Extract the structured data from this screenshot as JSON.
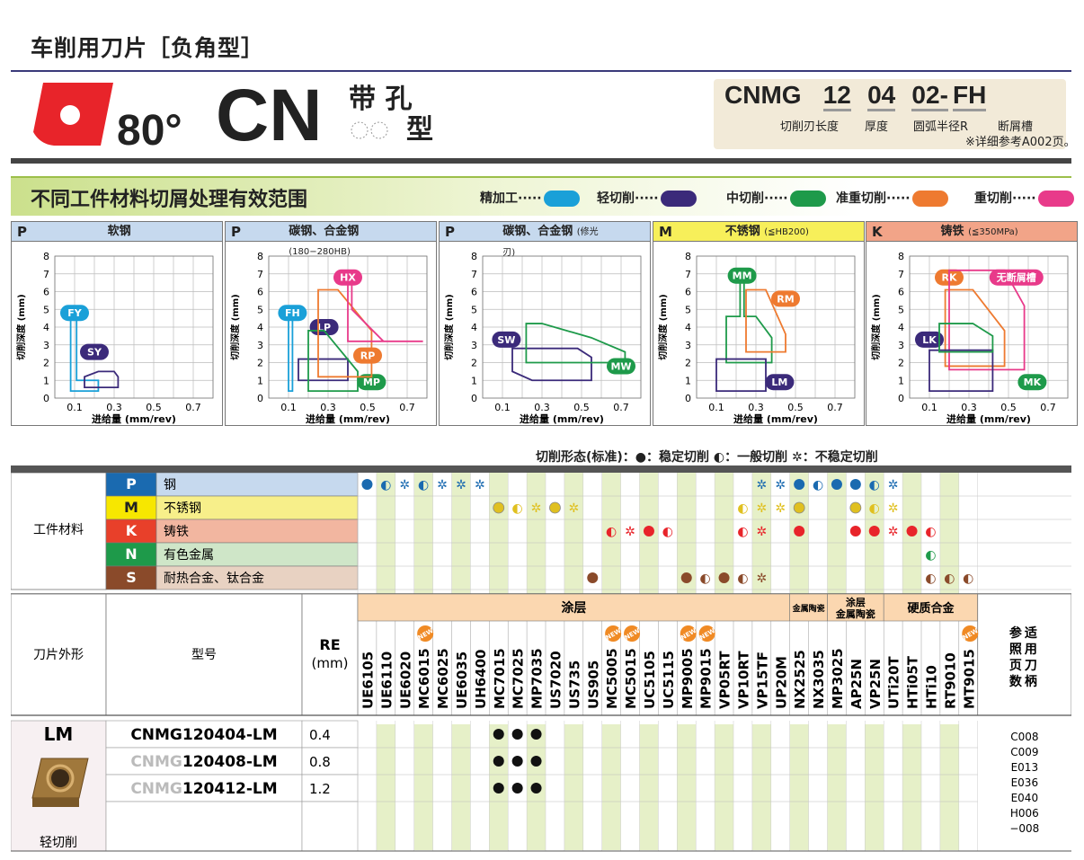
{
  "header": {
    "title": "车削用刀片［负角型］",
    "angle": "80°",
    "shape_code": "CN",
    "kanji_top": "带 孔",
    "kanji_bottom": "型",
    "code_parts": [
      "CNMG",
      "12",
      "04",
      "02-",
      "FH"
    ],
    "code_labels": [
      "切削刃长度",
      "厚度",
      "圆弧半径R",
      "断屑槽"
    ],
    "code_note": "※详细参考A002页。"
  },
  "section": {
    "title": "不同工件材料切屑处理有效范围",
    "legend": [
      {
        "label": "精加工·····",
        "color": "#1aa0d8"
      },
      {
        "label": "轻切削·····",
        "color": "#3b2a7a"
      },
      {
        "label": "中切削·····",
        "color": "#1e9a4a"
      },
      {
        "label": "准重切削·····",
        "color": "#ee7a30"
      },
      {
        "label": "重切削·····",
        "color": "#e83a8a"
      }
    ]
  },
  "charts": [
    {
      "letter": "P",
      "name": "软钢",
      "note": "",
      "head_color": "#c6d9ee",
      "ylabel": "切削深度 (mm)",
      "xlabel": "进给量 (mm/rev)"
    },
    {
      "letter": "P",
      "name": "碳钢、合金钢",
      "note": "(180−280HB)",
      "head_color": "#c6d9ee",
      "ylabel": "切削深度 (mm)",
      "xlabel": "进给量 (mm/rev)"
    },
    {
      "letter": "P",
      "name": "碳钢、合金钢",
      "note": "(修光刃)",
      "head_color": "#c6d9ee",
      "ylabel": "切削深度 (mm)",
      "xlabel": "进给量 (mm/rev)"
    },
    {
      "letter": "M",
      "name": "不锈钢",
      "note": "(≦HB200)",
      "head_color": "#f7ef5a",
      "ylabel": "切削深度 (mm)",
      "xlabel": "进给量 (mm/rev)"
    },
    {
      "letter": "K",
      "name": "铸铁",
      "note": "(≦350MPa)",
      "head_color": "#f2a488",
      "ylabel": "切削深度 (mm)",
      "xlabel": "进给量 (mm/rev)"
    }
  ],
  "chart_data": [
    {
      "type": "area",
      "title": "软钢",
      "xlabel": "进给量 (mm/rev)",
      "ylabel": "切削深度 (mm)",
      "xlim": [
        0,
        0.8
      ],
      "ylim": [
        0,
        8
      ],
      "xticks": [
        "0.1",
        "0.3",
        "0.5",
        "0.7"
      ],
      "yticks": [
        "0",
        "1",
        "2",
        "3",
        "4",
        "5",
        "6",
        "7",
        "8"
      ],
      "series": [
        {
          "name": "FY",
          "color": "#1aa0d8",
          "polygon": [
            [
              0.08,
              0.4
            ],
            [
              0.08,
              4.8
            ],
            [
              0.11,
              4.8
            ],
            [
              0.11,
              1.0
            ],
            [
              0.22,
              1.0
            ],
            [
              0.22,
              0.4
            ]
          ],
          "label_at": [
            0.1,
            4.8
          ]
        },
        {
          "name": "SY",
          "color": "#3b2a7a",
          "polygon": [
            [
              0.15,
              0.6
            ],
            [
              0.15,
              1.2
            ],
            [
              0.22,
              1.5
            ],
            [
              0.3,
              1.5
            ],
            [
              0.32,
              1.2
            ],
            [
              0.32,
              0.6
            ]
          ],
          "label_at": [
            0.2,
            2.6
          ]
        }
      ]
    },
    {
      "type": "area",
      "title": "碳钢、合金钢",
      "xlabel": "进给量 (mm/rev)",
      "ylabel": "切削深度 (mm)",
      "xlim": [
        0,
        0.8
      ],
      "ylim": [
        0,
        8
      ],
      "xticks": [
        "0.1",
        "0.3",
        "0.5",
        "0.7"
      ],
      "yticks": [
        "0",
        "1",
        "2",
        "3",
        "4",
        "5",
        "6",
        "7",
        "8"
      ],
      "series": [
        {
          "name": "FH",
          "color": "#1aa0d8",
          "polygon": [
            [
              0.1,
              0.4
            ],
            [
              0.1,
              4.8
            ],
            [
              0.12,
              4.8
            ],
            [
              0.12,
              0.4
            ]
          ],
          "label_at": [
            0.12,
            4.8
          ]
        },
        {
          "name": "LP",
          "color": "#3b2a7a",
          "polygon": [
            [
              0.15,
              1.0
            ],
            [
              0.15,
              2.2
            ],
            [
              0.4,
              2.2
            ],
            [
              0.4,
              1.0
            ]
          ],
          "label_at": [
            0.28,
            4.0
          ]
        },
        {
          "name": "MP",
          "color": "#1e9a4a",
          "polygon": [
            [
              0.2,
              0.4
            ],
            [
              0.2,
              3.8
            ],
            [
              0.28,
              3.8
            ],
            [
              0.45,
              1.5
            ],
            [
              0.45,
              0.4
            ]
          ],
          "label_at": [
            0.52,
            0.9
          ]
        },
        {
          "name": "RP",
          "color": "#ee7a30",
          "polygon": [
            [
              0.25,
              1.2
            ],
            [
              0.25,
              6.1
            ],
            [
              0.35,
              6.1
            ],
            [
              0.52,
              3.8
            ],
            [
              0.52,
              1.2
            ]
          ],
          "label_at": [
            0.5,
            2.4
          ]
        },
        {
          "name": "HX",
          "color": "#e83a8a",
          "polygon": [
            [
              0.4,
              3.2
            ],
            [
              0.4,
              7.0
            ],
            [
              0.42,
              7.0
            ],
            [
              0.42,
              5.0
            ],
            [
              0.58,
              3.2
            ],
            [
              0.78,
              3.2
            ]
          ],
          "label_at": [
            0.4,
            6.8
          ]
        }
      ]
    },
    {
      "type": "area",
      "title": "碳钢、合金钢 (修光刃)",
      "xlabel": "进给量 (mm/rev)",
      "ylabel": "切削深度 (mm)",
      "xlim": [
        0,
        0.8
      ],
      "ylim": [
        0,
        8
      ],
      "xticks": [
        "0.1",
        "0.3",
        "0.5",
        "0.7"
      ],
      "yticks": [
        "0",
        "1",
        "2",
        "3",
        "4",
        "5",
        "6",
        "7",
        "8"
      ],
      "series": [
        {
          "name": "SW",
          "color": "#3b2a7a",
          "polygon": [
            [
              0.15,
              1.5
            ],
            [
              0.15,
              2.8
            ],
            [
              0.48,
              2.8
            ],
            [
              0.55,
              2.3
            ],
            [
              0.55,
              1.0
            ],
            [
              0.25,
              1.0
            ]
          ],
          "label_at": [
            0.12,
            3.3
          ]
        },
        {
          "name": "MW",
          "color": "#1e9a4a",
          "polygon": [
            [
              0.22,
              2.0
            ],
            [
              0.22,
              4.2
            ],
            [
              0.3,
              4.2
            ],
            [
              0.55,
              3.4
            ],
            [
              0.72,
              2.6
            ],
            [
              0.72,
              2.0
            ]
          ],
          "label_at": [
            0.7,
            1.8
          ]
        }
      ]
    },
    {
      "type": "area",
      "title": "不锈钢",
      "xlabel": "进给量 (mm/rev)",
      "ylabel": "切削深度 (mm)",
      "xlim": [
        0,
        0.8
      ],
      "ylim": [
        0,
        8
      ],
      "xticks": [
        "0.1",
        "0.3",
        "0.5",
        "0.7"
      ],
      "yticks": [
        "0",
        "1",
        "2",
        "3",
        "4",
        "5",
        "6",
        "7",
        "8"
      ],
      "series": [
        {
          "name": "MM",
          "color": "#1e9a4a",
          "polygon": [
            [
              0.15,
              2.0
            ],
            [
              0.15,
              4.6
            ],
            [
              0.22,
              4.6
            ],
            [
              0.22,
              7.0
            ],
            [
              0.24,
              7.0
            ],
            [
              0.24,
              4.6
            ],
            [
              0.3,
              4.6
            ],
            [
              0.38,
              3.4
            ],
            [
              0.38,
              2.0
            ]
          ],
          "label_at": [
            0.23,
            6.9
          ]
        },
        {
          "name": "RM",
          "color": "#ee7a30",
          "polygon": [
            [
              0.25,
              2.6
            ],
            [
              0.25,
              6.1
            ],
            [
              0.35,
              6.1
            ],
            [
              0.45,
              3.6
            ],
            [
              0.45,
              2.6
            ]
          ],
          "label_at": [
            0.45,
            5.6
          ]
        },
        {
          "name": "LM",
          "color": "#3b2a7a",
          "polygon": [
            [
              0.1,
              0.4
            ],
            [
              0.1,
              2.2
            ],
            [
              0.35,
              2.2
            ],
            [
              0.35,
              0.4
            ]
          ],
          "label_at": [
            0.42,
            0.9
          ]
        }
      ]
    },
    {
      "type": "area",
      "title": "铸铁",
      "xlabel": "进给量 (mm/rev)",
      "ylabel": "切削深度 (mm)",
      "xlim": [
        0,
        0.8
      ],
      "ylim": [
        0,
        8
      ],
      "xticks": [
        "0.1",
        "0.3",
        "0.5",
        "0.7"
      ],
      "yticks": [
        "0",
        "1",
        "2",
        "3",
        "4",
        "5",
        "6",
        "7",
        "8"
      ],
      "series": [
        {
          "name": "RK",
          "color": "#ee7a30",
          "polygon": [
            [
              0.18,
              1.8
            ],
            [
              0.18,
              6.1
            ],
            [
              0.32,
              6.1
            ],
            [
              0.48,
              3.8
            ],
            [
              0.48,
              1.8
            ]
          ],
          "label_at": [
            0.2,
            6.8
          ]
        },
        {
          "name": "无断屑槽",
          "color": "#e83a8a",
          "polygon": [
            [
              0.2,
              1.6
            ],
            [
              0.2,
              7.2
            ],
            [
              0.48,
              7.2
            ],
            [
              0.58,
              5.2
            ],
            [
              0.58,
              1.6
            ]
          ],
          "label_at": [
            0.54,
            6.8
          ]
        },
        {
          "name": "LK",
          "color": "#3b2a7a",
          "polygon": [
            [
              0.1,
              0.4
            ],
            [
              0.1,
              2.7
            ],
            [
              0.42,
              2.7
            ],
            [
              0.42,
              0.4
            ]
          ],
          "label_at": [
            0.1,
            3.3
          ]
        },
        {
          "name": "MK",
          "color": "#1e9a4a",
          "polygon": [
            [
              0.15,
              2.6
            ],
            [
              0.15,
              4.2
            ],
            [
              0.32,
              4.2
            ],
            [
              0.42,
              3.5
            ],
            [
              0.42,
              2.6
            ]
          ],
          "label_at": [
            0.62,
            0.9
          ]
        }
      ]
    }
  ],
  "state_legend": "切削形态(标准)：●：稳定切削 ◐：一般切削 ✲：不稳定切削",
  "materials": {
    "label": "工件材料",
    "rows": [
      {
        "code": "P",
        "name": "钢",
        "code_bg": "#1a6ab0",
        "name_bg": "#c6d9ee"
      },
      {
        "code": "M",
        "name": "不锈钢",
        "code_bg": "#f7e700",
        "name_bg": "#f7ef8a"
      },
      {
        "code": "K",
        "name": "铸铁",
        "code_bg": "#e8402a",
        "name_bg": "#f2b6a0"
      },
      {
        "code": "N",
        "name": "有色金属",
        "code_bg": "#1e9a4a",
        "name_bg": "#cfe6c8"
      },
      {
        "code": "S",
        "name": "耐热合金、钛合金",
        "code_bg": "#8a4a2a",
        "name_bg": "#e8d2c2"
      }
    ]
  },
  "grades_header": {
    "insert_shape": "刀片外形",
    "model": "型号",
    "re": "RE",
    "re_unit": "(mm)",
    "coating": "涂层",
    "cermet": "金属陶瓷",
    "coated_cermet": "涂层\n金属陶瓷",
    "carbide": "硬质合金",
    "holder_ref": "参适\n照用\n页刀\n数柄",
    "new": "NEW"
  },
  "grades": [
    "UE6105",
    "UE6110",
    "UE6020",
    "MC6015",
    "MC6025",
    "UE6035",
    "UH6400",
    "MC7015",
    "MC7025",
    "MP7035",
    "US7020",
    "US735",
    "US905",
    "MC5005",
    "MC5015",
    "UC5105",
    "UC5115",
    "MP9005",
    "MP9015",
    "VP05RT",
    "VP10RT",
    "VP15TF",
    "UP20M",
    "NX2525",
    "NX3035",
    "MP3025",
    "AP25N",
    "VP25N",
    "UTi20T",
    "HTi05T",
    "HTi10",
    "RT9010",
    "MT9015"
  ],
  "new_grades": [
    3,
    13,
    14,
    17,
    18,
    32
  ],
  "state_symbols": {
    "P": [
      "●",
      "◐",
      "✲",
      "◐",
      "✲",
      "✲",
      "✲",
      "",
      "",
      "",
      "",
      "",
      "",
      "",
      "",
      "",
      "",
      "",
      "",
      "",
      "",
      "✲",
      "✲",
      "●",
      "◐",
      "●",
      "●",
      "◐",
      "✲",
      "",
      "",
      "",
      ""
    ],
    "M": [
      "",
      "",
      "",
      "",
      "",
      "",
      "",
      "○",
      "◐",
      "✲",
      "○",
      "✲",
      "",
      "",
      "",
      "",
      "",
      "",
      "",
      "",
      "◐",
      "✲",
      "✲",
      "○",
      "",
      "",
      "○",
      "◐",
      "✲",
      "",
      "",
      "",
      ""
    ],
    "K": [
      "",
      "",
      "",
      "",
      "",
      "",
      "",
      "",
      "",
      "",
      "",
      "",
      "",
      "◐",
      "✲",
      "●",
      "◐",
      "",
      "",
      "",
      "◐",
      "✲",
      "",
      "●",
      "",
      "",
      "●",
      "●",
      "✲",
      "●",
      "◐",
      "",
      ""
    ],
    "N": [
      "",
      "",
      "",
      "",
      "",
      "",
      "",
      "",
      "",
      "",
      "",
      "",
      "",
      "",
      "",
      "",
      "",
      "",
      "",
      "",
      "",
      "",
      "",
      "",
      "",
      "",
      "",
      "",
      "",
      "",
      "◐",
      "",
      ""
    ],
    "S": [
      "",
      "",
      "",
      "",
      "",
      "",
      "",
      "",
      "",
      "",
      "",
      "",
      "●",
      "",
      "",
      "",
      "",
      "●",
      "◐",
      "●",
      "◐",
      "✲",
      "",
      "",
      "",
      "",
      "",
      "",
      "",
      "",
      "◐",
      "◐",
      "◐"
    ]
  },
  "products": {
    "type": "LM",
    "type_label": "轻切削",
    "rows": [
      {
        "prefix": "",
        "model": "CNMG120404-LM",
        "re": "0.4",
        "dots": [
          7,
          8,
          9
        ]
      },
      {
        "prefix": "CNMG",
        "model": "120408-LM",
        "re": "0.8",
        "dots": [
          7,
          8,
          9
        ]
      },
      {
        "prefix": "CNMG",
        "model": "120412-LM",
        "re": "1.2",
        "dots": [
          7,
          8,
          9
        ]
      }
    ],
    "holders": [
      "C008",
      "C009",
      "E013",
      "E036",
      "E040",
      "H006",
      "−008"
    ]
  }
}
